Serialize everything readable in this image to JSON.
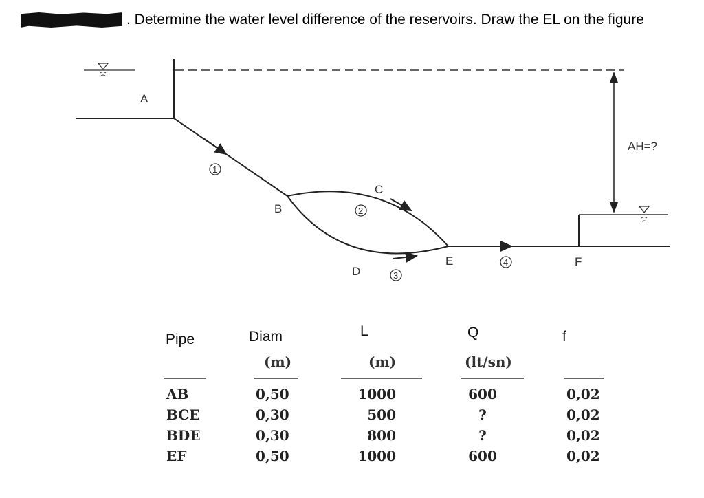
{
  "title": {
    "text": ". Determine the water level difference of the reservoirs. Draw the EL on the figure"
  },
  "figure": {
    "reservoir_a_label": "A",
    "reservoir_f_label": "F",
    "node_b": "B",
    "node_c": "C",
    "node_d": "D",
    "node_e": "E",
    "pipe_1": "1",
    "pipe_2": "2",
    "pipe_3": "3",
    "pipe_4": "4",
    "head_difference_label": "AH=?"
  },
  "table": {
    "headers": [
      "Pipe",
      "Diam",
      "L",
      "Q",
      "f"
    ],
    "units": [
      "",
      "(m)",
      "(m)",
      "(lt/sn)",
      ""
    ],
    "rows": [
      {
        "pipe": "AB",
        "diam": "0,50",
        "length": "1000",
        "q": "600",
        "f": "0,02"
      },
      {
        "pipe": "BCE",
        "diam": "0,30",
        "length": "500",
        "q": "?",
        "f": "0,02"
      },
      {
        "pipe": "BDE",
        "diam": "0,30",
        "length": "800",
        "q": "?",
        "f": "0,02"
      },
      {
        "pipe": "EF",
        "diam": "0,50",
        "length": "1000",
        "q": "600",
        "f": "0,02"
      }
    ]
  }
}
